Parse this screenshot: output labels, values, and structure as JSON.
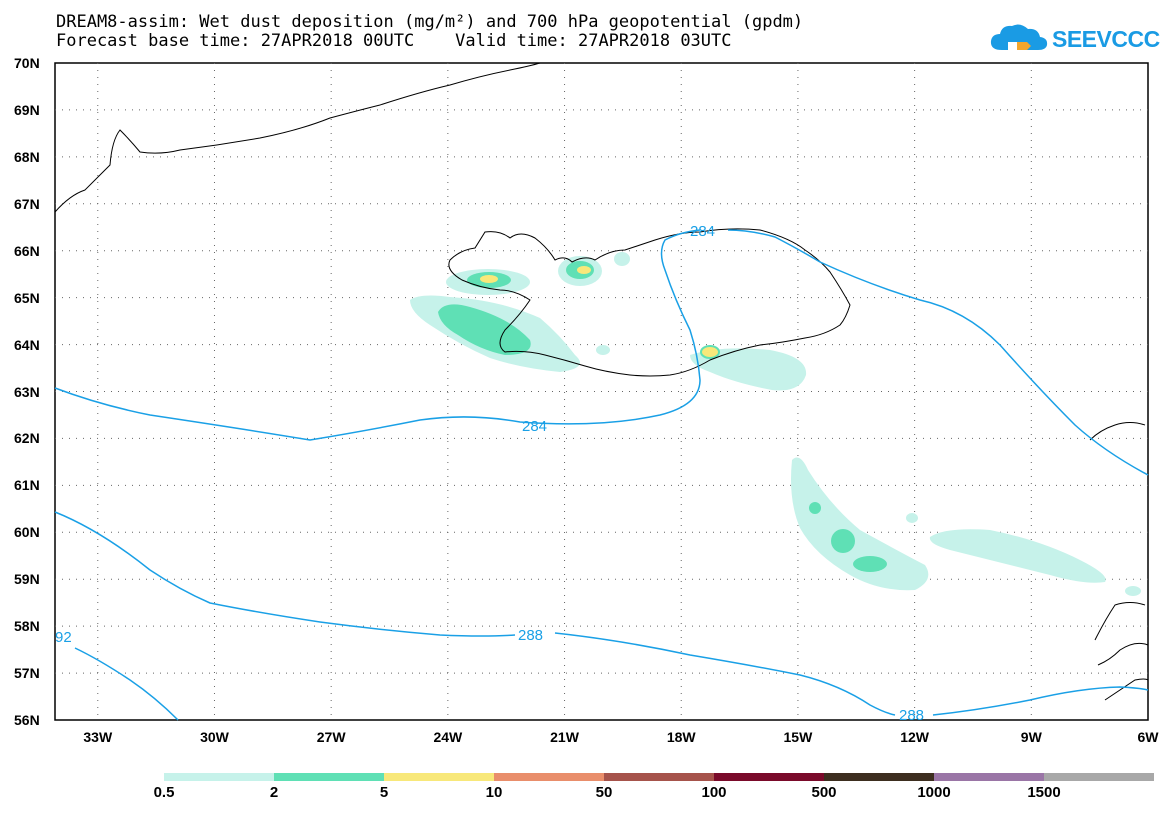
{
  "header": {
    "title_line1": "DREAM8-assim: Wet dust deposition (mg/m²) and 700 hPa geopotential (gpdm)",
    "title_line2": "Forecast base time: 27APR2018 00UTC    Valid time: 27APR2018 03UTC",
    "logo_text": "SEEVCCC"
  },
  "map": {
    "lat_labels": [
      "70N",
      "69N",
      "68N",
      "67N",
      "66N",
      "65N",
      "64N",
      "63N",
      "62N",
      "61N",
      "60N",
      "59N",
      "58N",
      "57N",
      "56N"
    ],
    "lon_labels": [
      "33W",
      "30W",
      "27W",
      "24W",
      "21W",
      "18W",
      "15W",
      "12W",
      "9W",
      "6W"
    ],
    "lat_range": [
      56,
      70
    ],
    "lon_range": [
      -34.1,
      -6
    ],
    "contour_labels": [
      "284",
      "284",
      "288",
      "288",
      "92"
    ],
    "contour_color": "#1aa0e6"
  },
  "legend": {
    "labels": [
      "0.5",
      "2",
      "5",
      "10",
      "50",
      "100",
      "500",
      "1000",
      "1500"
    ],
    "colors": [
      "#c6f2ea",
      "#5fe0b5",
      "#f8e87a",
      "#e98e6b",
      "#a6534b",
      "#7a0a2a",
      "#3d2e1f",
      "#9a75a6",
      "#a8a8a8"
    ]
  }
}
